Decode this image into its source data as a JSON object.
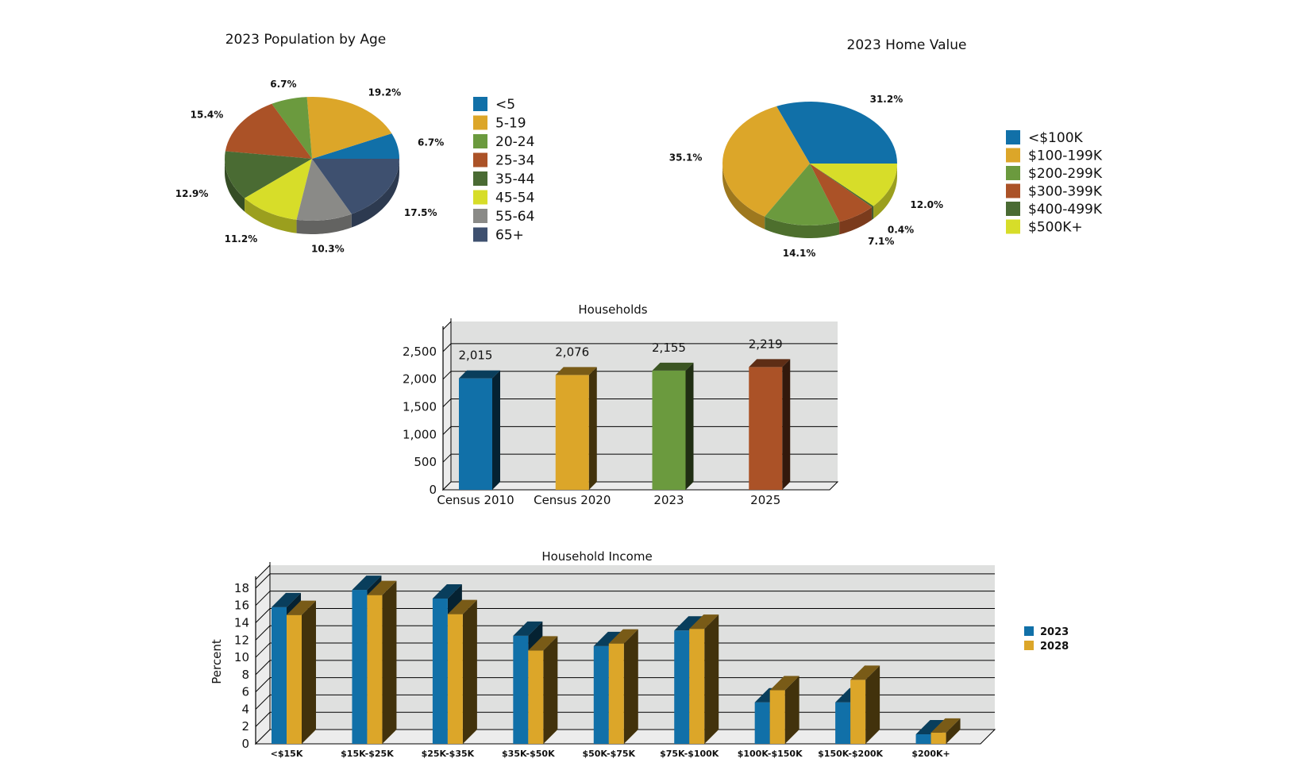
{
  "chart_data": [
    {
      "type": "pie",
      "title": "2023 Population by Age",
      "categories": [
        "<5",
        "5-19",
        "20-24",
        "25-34",
        "35-44",
        "45-54",
        "55-64",
        "65+"
      ],
      "values": [
        6.7,
        19.2,
        6.7,
        15.4,
        12.9,
        11.2,
        10.3,
        17.5
      ],
      "value_labels": [
        "6.7%",
        "19.2%",
        "6.7%",
        "15.4%",
        "12.9%",
        "11.2%",
        "10.3%",
        "17.5%"
      ],
      "colors": [
        "#1170a8",
        "#dca629",
        "#6b9a3e",
        "#ab5227",
        "#4a6b33",
        "#d7dd29",
        "#8a8a87",
        "#3e506f"
      ],
      "legend_position": "right"
    },
    {
      "type": "pie",
      "title": "2023 Home Value",
      "categories": [
        "<$100K",
        "$100-199K",
        "$200-299K",
        "$300-399K",
        "$400-499K",
        "$500K+"
      ],
      "values": [
        31.2,
        35.1,
        14.1,
        7.1,
        0.4,
        12.0
      ],
      "value_labels": [
        "31.2%",
        "35.1%",
        "14.1%",
        "7.1%",
        "0.4%",
        "12.0%"
      ],
      "colors": [
        "#1170a8",
        "#dca629",
        "#6b9a3e",
        "#ab5227",
        "#4a6b33",
        "#d7dd29"
      ],
      "legend_position": "right"
    },
    {
      "type": "bar",
      "title": "Households",
      "categories": [
        "Census 2010",
        "Census 2020",
        "2023",
        "2025"
      ],
      "values": [
        2015,
        2076,
        2155,
        2219
      ],
      "value_labels": [
        "2,015",
        "2,076",
        "2,155",
        "2,219"
      ],
      "colors": [
        "#1170a8",
        "#dca629",
        "#6b9a3e",
        "#ab5227"
      ],
      "yticks": [
        "0",
        "500",
        "1,000",
        "1,500",
        "2,000",
        "2,500"
      ],
      "ylim": [
        0,
        2900
      ],
      "grid": true
    },
    {
      "type": "bar",
      "title": "Household Income",
      "ylabel": "Percent",
      "categories": [
        "<$15K",
        "$15K-$25K",
        "$25K-$35K",
        "$35K-$50K",
        "$50K-$75K",
        "$75K-$100K",
        "$100K-$150K",
        "$150K-$200K",
        "$200K+"
      ],
      "series": [
        {
          "name": "2023",
          "color": "#1170a8",
          "values": [
            15.8,
            17.8,
            16.8,
            12.5,
            11.3,
            13.1,
            4.8,
            4.8,
            1.1
          ]
        },
        {
          "name": "2028",
          "color": "#dca629",
          "values": [
            14.9,
            17.2,
            15.0,
            10.8,
            11.6,
            13.3,
            6.2,
            7.4,
            1.3
          ]
        }
      ],
      "yticks": [
        "0",
        "2",
        "4",
        "6",
        "8",
        "10",
        "12",
        "14",
        "16",
        "18"
      ],
      "ylim": [
        0,
        19
      ],
      "grid": true,
      "legend_position": "right"
    }
  ]
}
